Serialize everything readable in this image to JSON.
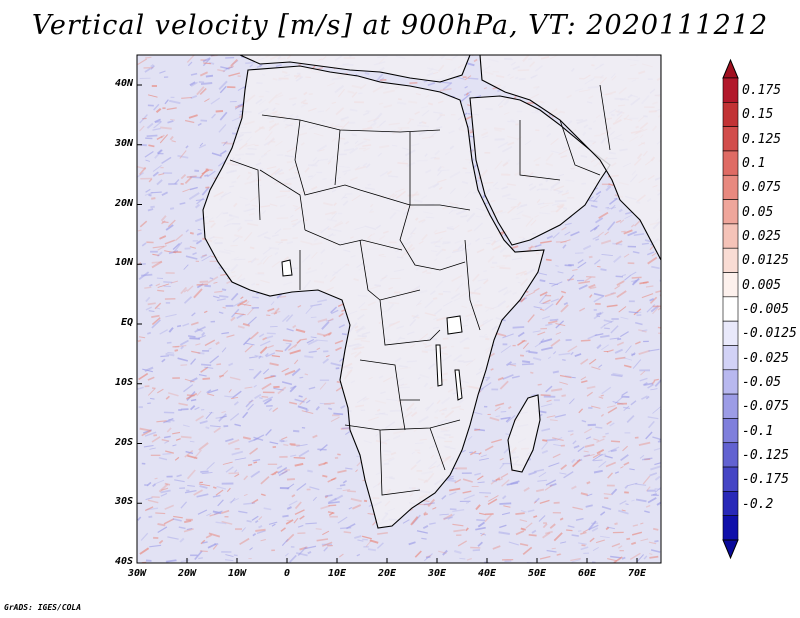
{
  "title": "Vertical velocity [m/s] at 900hPa, VT: 2020111212",
  "credit": "GrADS: IGES/COLA",
  "lat_labels": [
    "40N",
    "30N",
    "20N",
    "10N",
    "EQ",
    "10S",
    "20S",
    "30S",
    "40S"
  ],
  "lon_labels": [
    "30W",
    "20W",
    "10W",
    "0",
    "10E",
    "20E",
    "30E",
    "40E",
    "50E",
    "60E",
    "70E"
  ],
  "colorbar": {
    "labels": [
      "0.175",
      "0.15",
      "0.125",
      "0.1",
      "0.075",
      "0.05",
      "0.025",
      "0.0125",
      "0.005",
      "-0.005",
      "-0.0125",
      "-0.025",
      "-0.05",
      "-0.075",
      "-0.1",
      "-0.125",
      "-0.175",
      "-0.2"
    ],
    "colors": [
      "#b2182b",
      "#c23335",
      "#d24d4b",
      "#df6b64",
      "#e8897f",
      "#efa69b",
      "#f5c3b8",
      "#f9dcd4",
      "#fdf1ed",
      "#ffffff",
      "#e9e9fb",
      "#d2d2f6",
      "#b8b8ef",
      "#9c9ce6",
      "#7f7fdc",
      "#6262d1",
      "#4545c5",
      "#2828b8",
      "#1010aa"
    ],
    "arrow_top_color": "#a01020",
    "arrow_bottom_color": "#0a0a9a"
  },
  "field_colors": {
    "ocean": "#e2e2f4",
    "land": "#f1eef3",
    "positive": "#e8897f",
    "negative": "#9c9ce6",
    "coast": "#000000"
  }
}
